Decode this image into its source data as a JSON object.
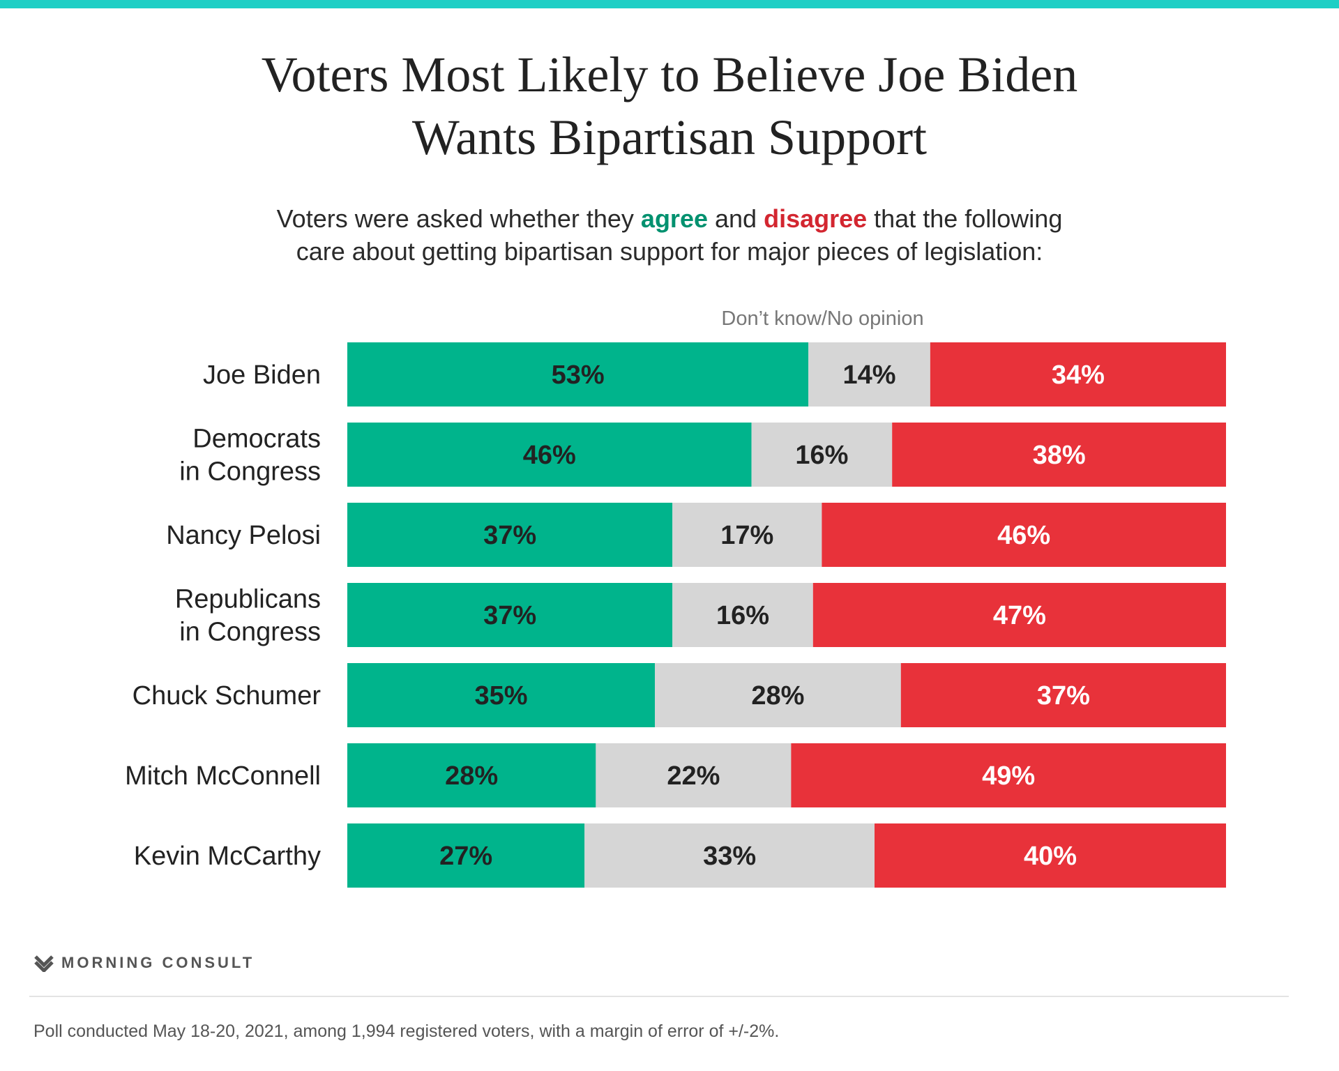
{
  "colors": {
    "agree": "#00b48c",
    "dont_know": "#d6d6d6",
    "disagree": "#e8323a",
    "agree_text": "#00916f",
    "disagree_text": "#d32630",
    "top_bar": "#1ecfc5"
  },
  "title_lines": [
    "Voters Most Likely to Believe Joe Biden",
    "Wants Bipartisan Support"
  ],
  "subtitle": {
    "pre": "Voters were asked whether they ",
    "agree_word": "agree",
    "mid": " and ",
    "disagree_word": "disagree",
    "post": " that the following",
    "line2": "care about getting bipartisan support for major pieces of legislation:"
  },
  "brand": {
    "name": "MORNING CONSULT",
    "icon": "morning-consult-logo-icon"
  },
  "footnote": "Poll conducted May 18-20, 2021, among 1,994 registered voters, with a margin of error of +/-2%.",
  "chart_data": {
    "type": "bar",
    "orientation": "horizontal",
    "stacked": true,
    "categories": [
      [
        "Joe Biden"
      ],
      [
        "Democrats",
        "in Congress"
      ],
      [
        "Nancy Pelosi"
      ],
      [
        "Republicans",
        "in Congress"
      ],
      [
        "Chuck Schumer"
      ],
      [
        "Mitch McConnell"
      ],
      [
        "Kevin McCarthy"
      ]
    ],
    "series": [
      {
        "key": "agree",
        "values": [
          53,
          46,
          37,
          37,
          35,
          28,
          27
        ]
      },
      {
        "name": "Don’t know/No opinion",
        "key": "dont_know",
        "values": [
          14,
          16,
          17,
          16,
          28,
          22,
          33
        ]
      },
      {
        "key": "disagree",
        "values": [
          34,
          38,
          46,
          47,
          37,
          49,
          40
        ]
      }
    ],
    "value_suffix": "%",
    "grid": false
  }
}
